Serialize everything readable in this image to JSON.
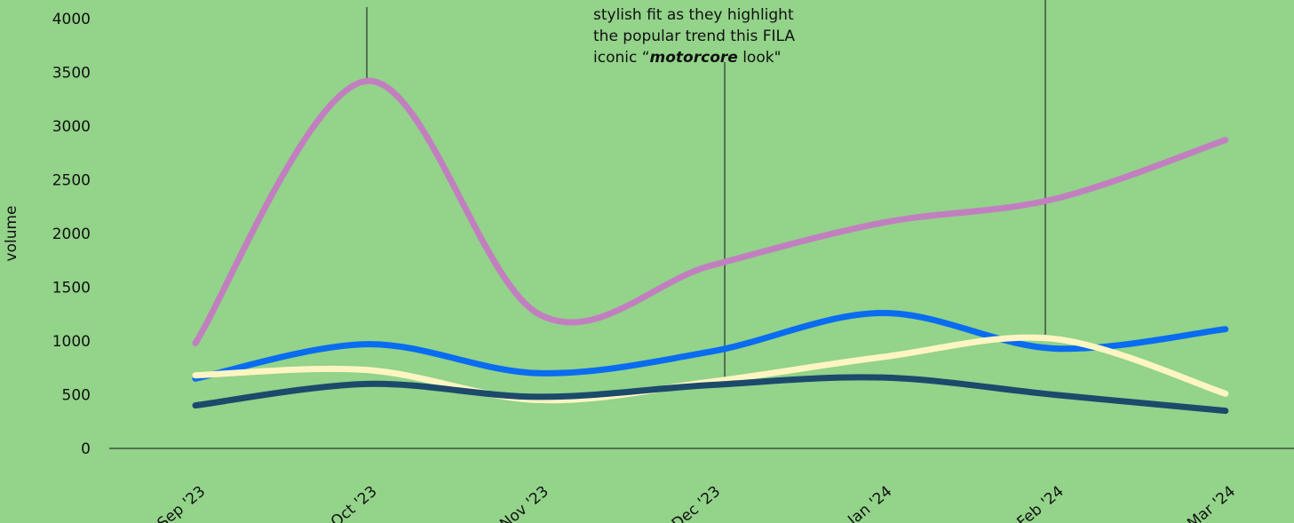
{
  "chart_data": {
    "type": "line",
    "y_label": "volume",
    "categories": [
      "Sep '23",
      "Oct '23",
      "Nov '23",
      "Dec '23",
      "Jan '24",
      "Feb '24",
      "Mar '24"
    ],
    "series": [
      {
        "color": "#c27fc0",
        "values": [
          980,
          3420,
          1250,
          1700,
          2100,
          2320,
          2870
        ]
      },
      {
        "color": "#0a6cf0",
        "values": [
          650,
          970,
          700,
          900,
          1260,
          930,
          1110
        ]
      },
      {
        "color": "#fff5c2",
        "values": [
          680,
          730,
          450,
          620,
          850,
          1020,
          510
        ]
      },
      {
        "color": "#1b4a6b",
        "values": [
          400,
          600,
          480,
          590,
          660,
          500,
          350
        ]
      }
    ],
    "ylim": [
      0,
      4000
    ],
    "yticks": [
      0,
      500,
      1000,
      1500,
      2000,
      2500,
      3000,
      3500,
      4000
    ],
    "annotation": {
      "lines": [
        "stylish fit as they highlight",
        "the popular trend this FILA"
      ],
      "last_line": [
        "iconic “",
        "motorcore",
        " look\""
      ]
    }
  }
}
